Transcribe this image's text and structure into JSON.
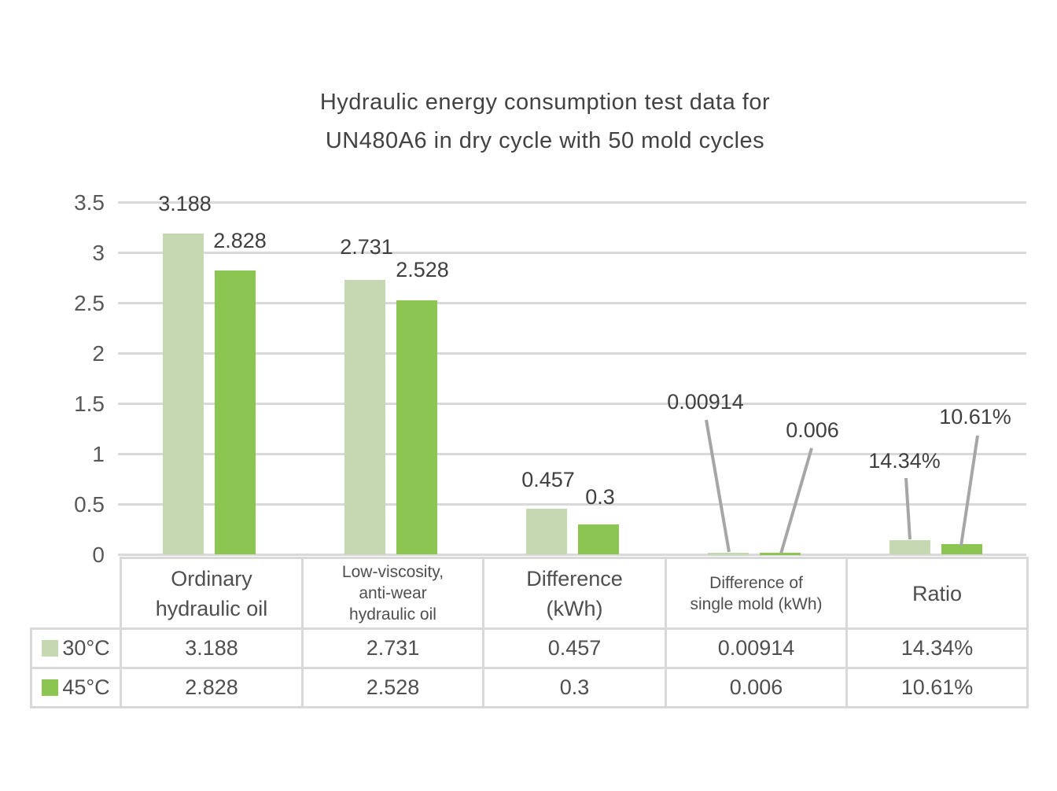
{
  "chart_data": {
    "type": "bar",
    "title": "Hydraulic energy consumption test data for UN480A6 in dry cycle with 50 mold cycles",
    "title_lines": [
      "Hydraulic energy consumption test data for",
      "UN480A6 in dry cycle with 50 mold cycles"
    ],
    "categories": [
      "Ordinary hydraulic oil",
      "Low-viscosity, anti-wear hydraulic oil",
      "Difference (kWh)",
      "Difference of single mold (kWh)",
      "Ratio"
    ],
    "series": [
      {
        "name": "30°C",
        "color": "#c5d8b2",
        "values": [
          3.188,
          2.731,
          0.457,
          0.00914,
          0.1434
        ],
        "labels": [
          "3.188",
          "2.731",
          "0.457",
          "0.00914",
          "14.34%"
        ]
      },
      {
        "name": "45°C",
        "color": "#8dc552",
        "values": [
          2.828,
          2.528,
          0.3,
          0.006,
          0.1061
        ],
        "labels": [
          "2.828",
          "2.528",
          "0.3",
          "0.006",
          "10.61%"
        ]
      }
    ],
    "y_ticks": [
      "0",
      "0.5",
      "1",
      "1.5",
      "2",
      "2.5",
      "3",
      "3.5"
    ],
    "ylim": [
      0,
      3.5
    ],
    "grid": true,
    "gridline_color": "#d9d9d9",
    "leader_line_color": "#a6a6a6",
    "legend_position": "table-left"
  },
  "table": {
    "headers": [
      {
        "text": "Ordinary hydraulic oil",
        "lines": [
          "Ordinary",
          "hydraulic oil"
        ],
        "size": "lg"
      },
      {
        "text": "Low-viscosity, anti-wear hydraulic oil",
        "lines": [
          "Low-viscosity,",
          "anti-wear",
          "hydraulic oil"
        ],
        "size": "sm"
      },
      {
        "text": "Difference (kWh)",
        "lines": [
          "Difference",
          "(kWh)"
        ],
        "size": "lg"
      },
      {
        "text": "Difference of single mold (kWh)",
        "lines": [
          "Difference of",
          "single mold (kWh)"
        ],
        "size": "sm"
      },
      {
        "text": "Ratio",
        "lines": [
          "Ratio"
        ],
        "size": "lg"
      }
    ],
    "rows": [
      {
        "legend": "30°C",
        "swatch": "#c5d8b2",
        "values": [
          "3.188",
          "2.731",
          "0.457",
          "0.00914",
          "14.34%"
        ]
      },
      {
        "legend": "45°C",
        "swatch": "#8dc552",
        "values": [
          "2.828",
          "2.528",
          "0.3",
          "0.006",
          "10.61%"
        ]
      }
    ]
  }
}
